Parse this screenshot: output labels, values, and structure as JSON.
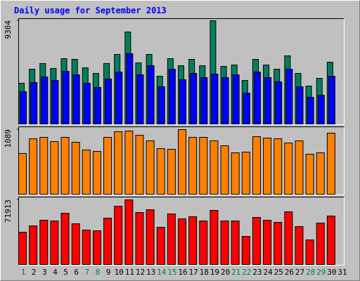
{
  "chart_data": {
    "type": "bar",
    "title": "Daily usage for September 2013",
    "title_color": "#0000ff",
    "categories": [
      "1",
      "2",
      "3",
      "4",
      "5",
      "6",
      "7",
      "8",
      "9",
      "10",
      "11",
      "12",
      "13",
      "14",
      "15",
      "16",
      "17",
      "18",
      "19",
      "20",
      "21",
      "22",
      "23",
      "24",
      "25",
      "26",
      "27",
      "28",
      "29",
      "30",
      "31"
    ],
    "category_colors": [
      "#008040",
      "#000000",
      "#000000",
      "#000000",
      "#000000",
      "#000000",
      "#008040",
      "#008040",
      "#000000",
      "#000000",
      "#000000",
      "#000000",
      "#000000",
      "#008040",
      "#008040",
      "#000000",
      "#000000",
      "#000000",
      "#000000",
      "#000000",
      "#008040",
      "#008040",
      "#000000",
      "#000000",
      "#000000",
      "#000000",
      "#000000",
      "#008040",
      "#008040",
      "#000000",
      "#000000"
    ],
    "panels": [
      {
        "ylim": [
          0,
          9304
        ],
        "yticks": [
          9304
        ],
        "series": [
          {
            "color": "#00805c",
            "values": [
              3671,
              4937,
              5443,
              5000,
              5886,
              5823,
              5063,
              4557,
              5443,
              6266,
              8291,
              5506,
              6266,
              4304,
              5886,
              5253,
              5823,
              5253,
              9304,
              5190,
              5316,
              3924,
              5823,
              5316,
              4937,
              6139,
              4557,
              3418,
              4114,
              5570,
              null
            ]
          },
          {
            "color": "#0000ff",
            "values": [
              2911,
              3734,
              4241,
              3924,
              4747,
              4430,
              3671,
              3291,
              4051,
              4684,
              6329,
              4430,
              5253,
              3354,
              4937,
              3987,
              4557,
              4177,
              4494,
              4177,
              4430,
              2785,
              4684,
              4177,
              3797,
              4937,
              3354,
              2405,
              2595,
              4304,
              null
            ]
          }
        ]
      },
      {
        "ylim": [
          0,
          1089
        ],
        "yticks": [
          1089
        ],
        "series": [
          {
            "color": "#ff8000",
            "values": [
              687,
              935,
              959,
              888,
              959,
              876,
              746,
              722,
              959,
              1053,
              1065,
              994,
              900,
              769,
              758,
              1089,
              959,
              959,
              900,
              817,
              698,
              710,
              971,
              947,
              935,
              864,
              900,
              675,
              698,
              1030,
              null
            ]
          }
        ]
      },
      {
        "ylim": [
          0,
          71913
        ],
        "yticks": [
          71913
        ],
        "series": [
          {
            "color": "#ff0000",
            "values": [
              35957,
              42991,
              49245,
              48463,
              57062,
              45337,
              38302,
              37520,
              51590,
              64878,
              71913,
              57843,
              60970,
              41428,
              56280,
              50808,
              53153,
              48463,
              60188,
              48463,
              48463,
              31266,
              52372,
              49245,
              46900,
              58625,
              42210,
              27358,
              46118,
              53935,
              null
            ]
          }
        ]
      }
    ]
  }
}
